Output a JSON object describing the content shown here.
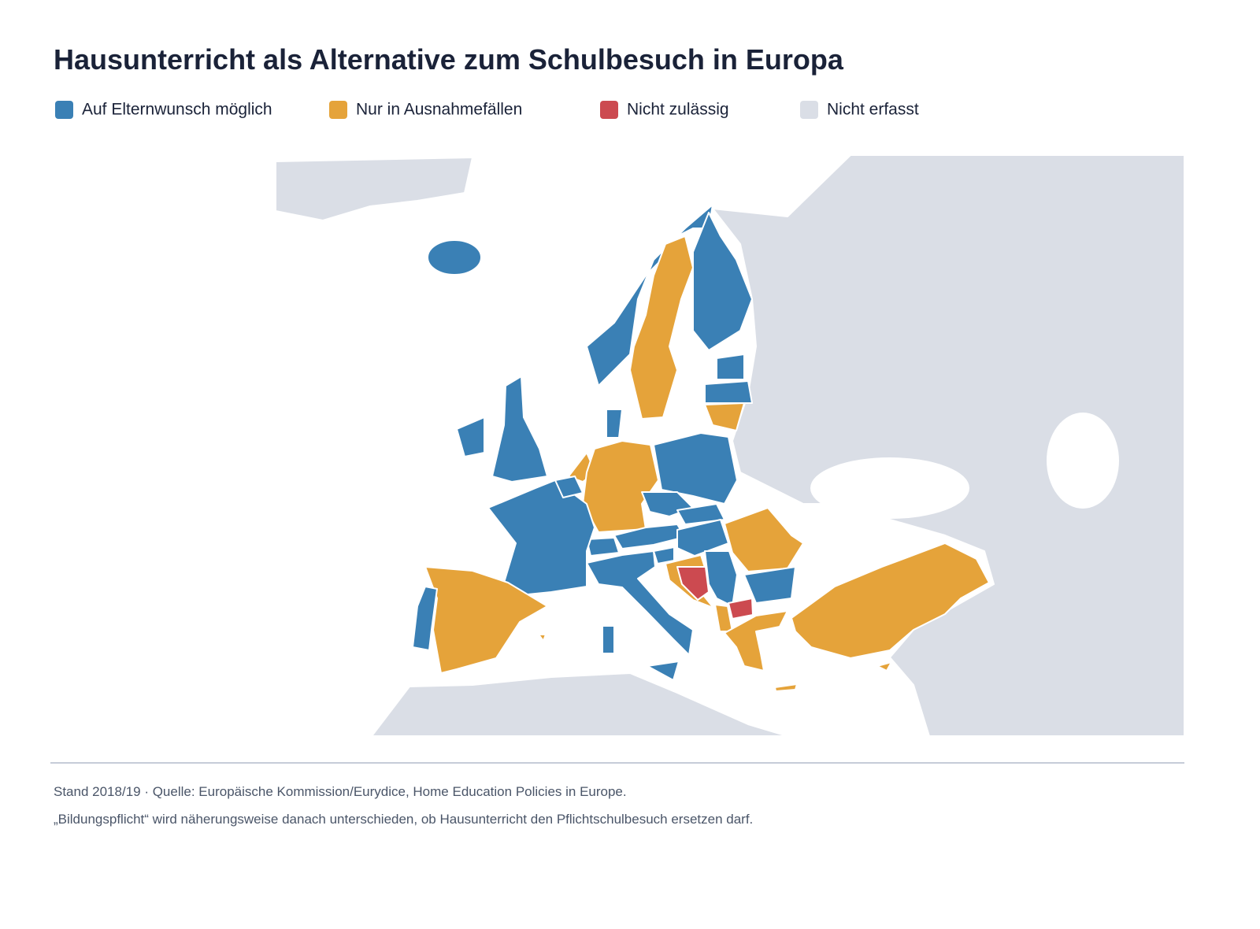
{
  "title": "Hausunterricht als Alternative zum Schulbesuch in Europa",
  "legend": [
    {
      "label": "Auf Elternwunsch möglich",
      "color": "#3a80b5"
    },
    {
      "label": "Nur in Ausnahmefällen",
      "color": "#e5a33a"
    },
    {
      "label": "Nicht zulässig",
      "color": "#cc4a50"
    },
    {
      "label": "Nicht erfasst",
      "color": "#dadee6"
    }
  ],
  "notes": [
    "Stand 2018/19 · Quelle: Europäische Kommission/Eurydice, Home Education Policies in Europe.",
    "„Bildungspflicht“ wird näherungsweise danach unterschieden, ob Hausunterricht den Pflichtschulbesuch ersetzen darf."
  ]
}
